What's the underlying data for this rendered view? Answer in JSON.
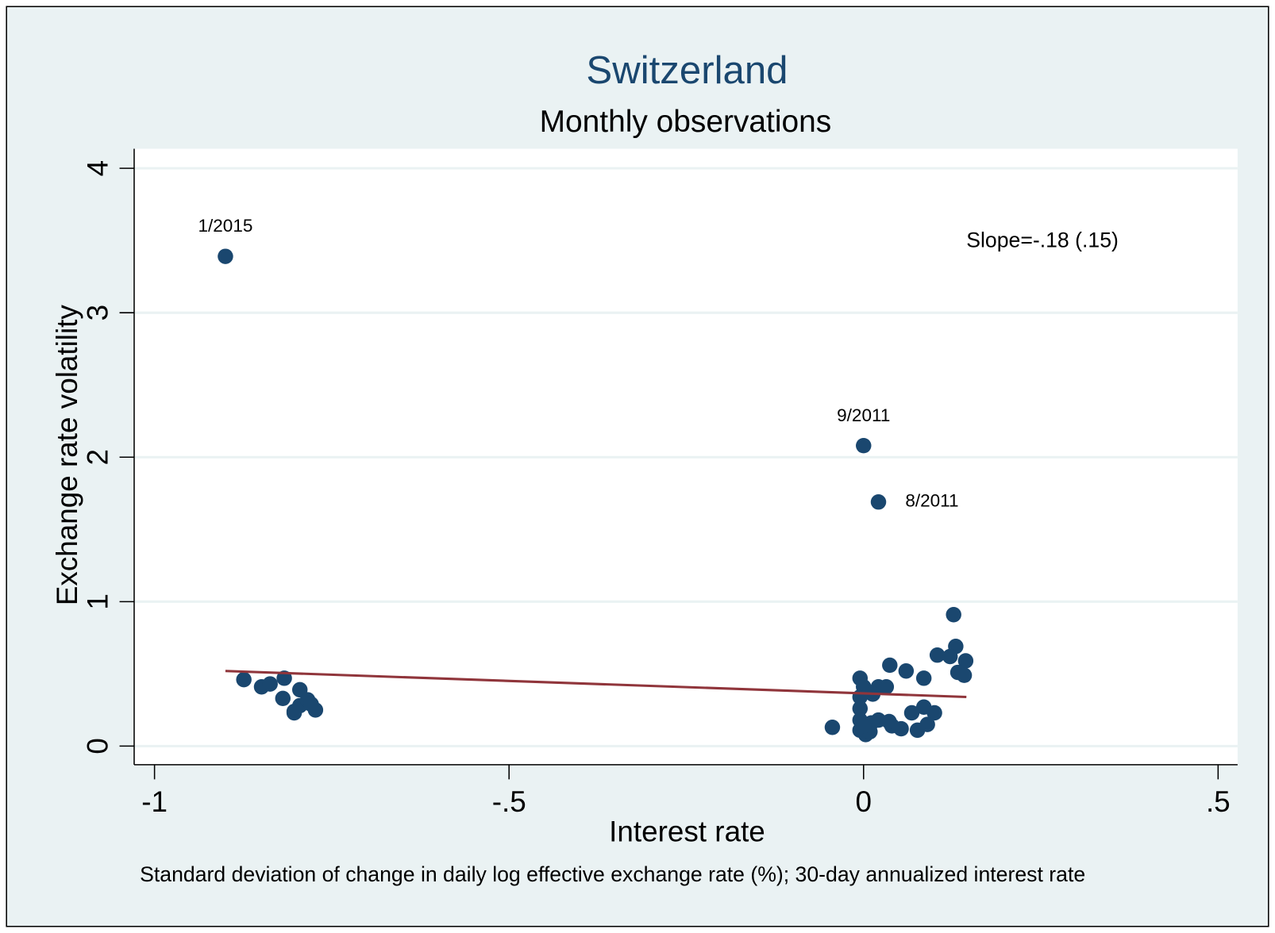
{
  "chart_data": {
    "type": "scatter",
    "title": "Switzerland",
    "subtitle": "Monthly observations",
    "xlabel": "Interest rate",
    "ylabel": "Exchange rate volatility",
    "note": "Standard deviation of change in daily log effective exchange rate (%); 30-day annualized interest rate",
    "annotation": "Slope=-.18 (.15)",
    "xlim": [
      -1.0287,
      0.5275
    ],
    "ylim": [
      -0.129,
      4.135
    ],
    "xticks": [
      -1,
      {
        "value": -0.5,
        "label": "-.5"
      },
      0,
      {
        "value": 0.5,
        "label": ".5"
      }
    ],
    "yticks": [
      0,
      1,
      2,
      3,
      4
    ],
    "grid": true,
    "color": "#1a476f",
    "x": [
      -0.9,
      0,
      0.021,
      -0.874,
      -0.849,
      -0.837,
      -0.817,
      -0.819,
      -0.803,
      -0.795,
      -0.795,
      -0.784,
      -0.773,
      -0.779,
      -0.803,
      0.127,
      0.13,
      0.104,
      0.122,
      0.144,
      0.133,
      0.142,
      0.037,
      0.06,
      0.085,
      -0.005,
      0,
      0.021,
      0.032,
      0.013,
      -0.005,
      -0.005,
      0.085,
      0.068,
      0.1,
      0.09,
      0.076,
      0.053,
      0.04,
      0.036,
      0.021,
      0.011,
      -0.005,
      -0.005,
      0.003,
      0.009,
      -0.044,
      0
    ],
    "values": [
      3.39,
      2.08,
      1.69,
      0.46,
      0.41,
      0.43,
      0.47,
      0.33,
      0.24,
      0.39,
      0.28,
      0.32,
      0.25,
      0.29,
      0.23,
      0.91,
      0.69,
      0.63,
      0.62,
      0.59,
      0.51,
      0.49,
      0.56,
      0.52,
      0.47,
      0.47,
      0.41,
      0.41,
      0.41,
      0.36,
      0.34,
      0.26,
      0.27,
      0.23,
      0.23,
      0.15,
      0.11,
      0.12,
      0.14,
      0.17,
      0.18,
      0.16,
      0.18,
      0.11,
      0.08,
      0.1,
      0.13,
      0.14
    ],
    "point_labels": [
      "1/2015",
      "9/2011",
      "8/2011",
      null,
      null,
      null,
      null,
      null,
      null,
      null,
      null,
      null,
      null,
      null,
      null,
      null,
      null,
      null,
      null,
      null,
      null,
      null,
      null,
      null,
      null,
      null,
      null,
      null,
      null,
      null,
      null,
      null,
      null,
      null,
      null,
      null,
      null,
      null,
      null,
      null,
      null,
      null,
      null,
      null,
      null,
      null,
      null,
      null
    ],
    "fit": {
      "x": [
        -0.9,
        0.145
      ],
      "y": [
        0.52,
        0.34
      ],
      "color": "#90353b"
    }
  }
}
